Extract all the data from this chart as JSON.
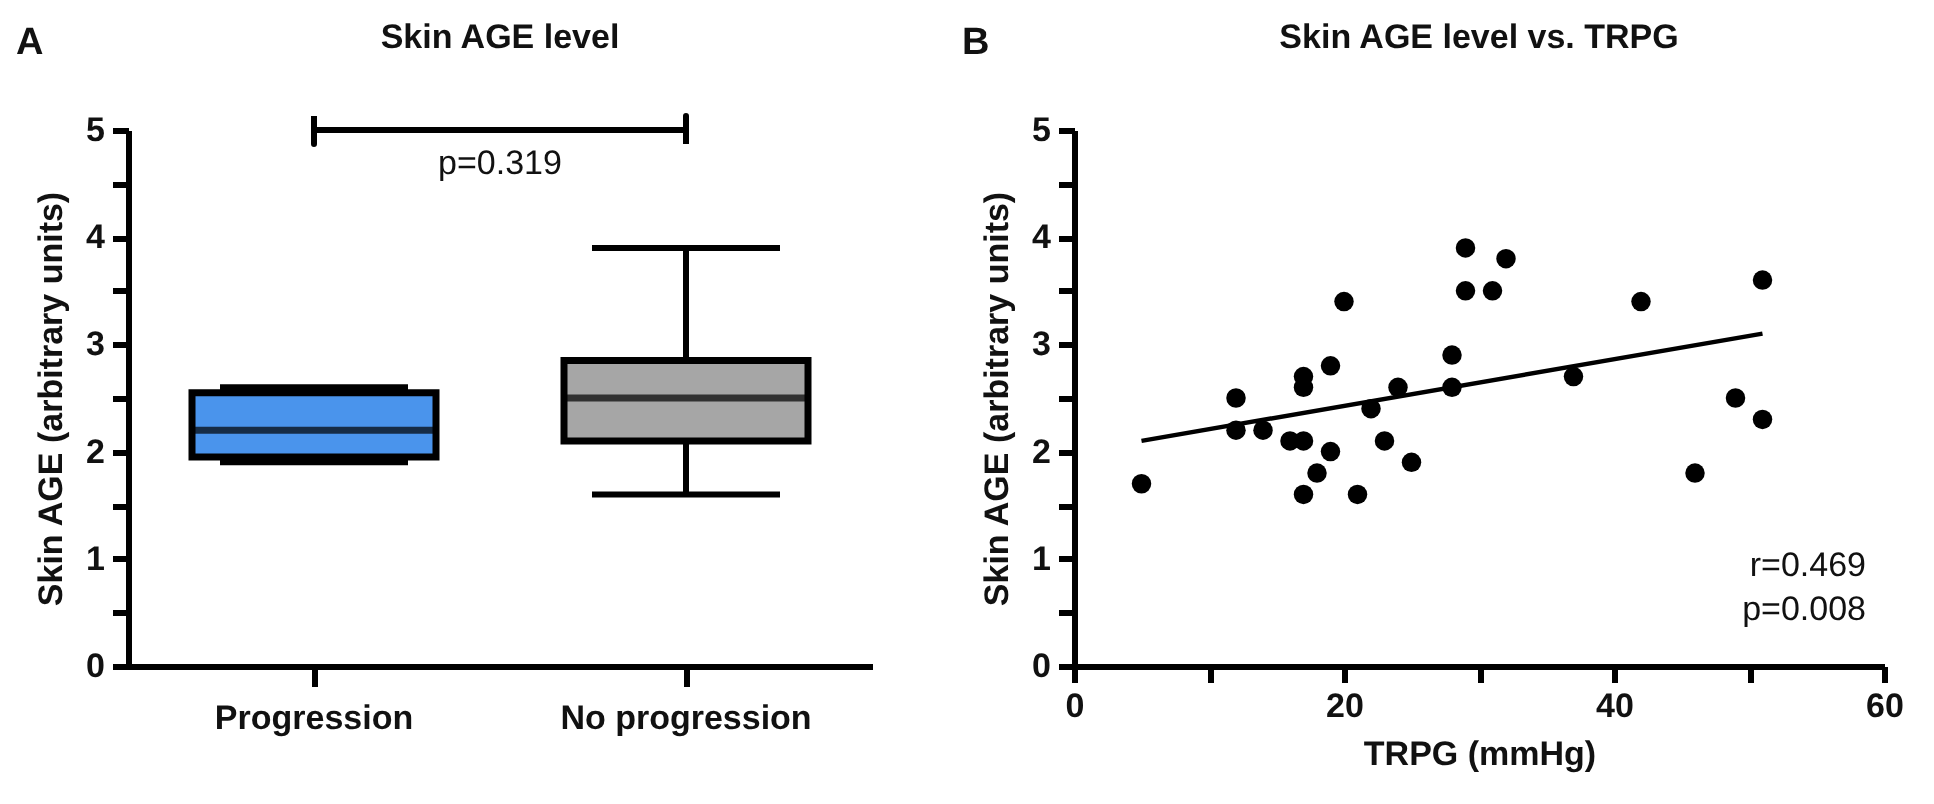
{
  "chart_data": [
    {
      "type": "box",
      "title": "Skin AGE level",
      "ylabel": "Skin AGE (arbitrary units)",
      "categories": [
        "Progression",
        "No progression"
      ],
      "boxes": [
        {
          "low": 1.9,
          "q1": 1.95,
          "median": 2.2,
          "q3": 2.55,
          "high": 2.6
        },
        {
          "low": 1.6,
          "q1": 2.1,
          "median": 2.5,
          "q3": 2.85,
          "high": 3.9
        }
      ],
      "colors": [
        "#4a94ec",
        "#a6a6a6"
      ],
      "ylim": [
        0,
        5
      ],
      "yticks": [
        0,
        {
          "value": 0.5,
          "label": null
        },
        1,
        {
          "value": 1.5,
          "label": null
        },
        2,
        {
          "value": 2.5,
          "label": null
        },
        3,
        {
          "value": 3.5,
          "label": null
        },
        4,
        {
          "value": 4.5,
          "label": null
        },
        5
      ],
      "annotations": [
        "A",
        "p=0.319"
      ]
    },
    {
      "type": "scatter",
      "title": "Skin AGE level vs. TRPG",
      "xlabel": "TRPG (mmHg)",
      "ylabel": "Skin AGE (arbitrary units)",
      "series": [
        {
          "type": "scatter",
          "color": "#000000",
          "marker": "circle",
          "x": [
            5,
            12,
            12,
            14,
            16,
            17,
            17,
            17,
            18,
            17,
            19,
            19,
            20,
            21,
            22,
            23,
            24,
            25,
            28,
            28,
            29,
            29,
            31,
            32,
            37,
            42,
            46,
            49,
            51,
            51
          ],
          "values": [
            1.7,
            2.5,
            2.2,
            2.2,
            2.1,
            2.1,
            2.7,
            2.6,
            1.8,
            1.6,
            2.8,
            2.0,
            3.4,
            1.6,
            2.4,
            2.1,
            2.6,
            1.9,
            2.9,
            2.6,
            3.9,
            3.5,
            3.5,
            3.8,
            2.7,
            3.4,
            1.8,
            2.5,
            3.6,
            2.3
          ]
        },
        {
          "type": "line",
          "color": "#000000",
          "x": [
            5,
            51
          ],
          "values": [
            2.1,
            3.1
          ]
        }
      ],
      "xlim": [
        0,
        60
      ],
      "xticks": [
        0,
        {
          "value": 10,
          "label": null
        },
        20,
        {
          "value": 30,
          "label": null
        },
        40,
        {
          "value": 50,
          "label": null
        },
        60
      ],
      "ylim": [
        0,
        5
      ],
      "yticks": [
        0,
        {
          "value": 0.5,
          "label": null
        },
        1,
        {
          "value": 1.5,
          "label": null
        },
        2,
        {
          "value": 2.5,
          "label": null
        },
        3,
        {
          "value": 3.5,
          "label": null
        },
        4,
        {
          "value": 4.5,
          "label": null
        },
        5
      ],
      "annotations": [
        "B",
        "r=0.469",
        "p=0.008"
      ]
    }
  ]
}
